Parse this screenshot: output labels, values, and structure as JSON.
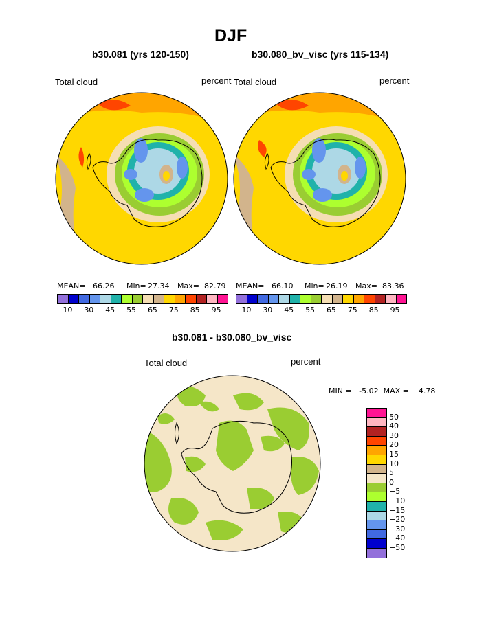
{
  "title": "DJF",
  "panels": [
    {
      "subtitle": "b30.081 (yrs 120-150)",
      "left_label": "Total cloud",
      "right_label": "percent",
      "stats": {
        "mean_label": "MEAN=",
        "mean": "66.26",
        "min_label": "Min=",
        "min": "27.34",
        "max_label": "Max=",
        "max": "82.79"
      }
    },
    {
      "subtitle": "b30.080_bv_visc (yrs 115-134)",
      "left_label": "Total cloud",
      "right_label": "percent",
      "stats": {
        "mean_label": "MEAN=",
        "mean": "66.10",
        "min_label": "Min=",
        "min": "26.19",
        "max_label": "Max=",
        "max": "83.36"
      }
    }
  ],
  "colorbar_top": {
    "colors": [
      "#9370DB",
      "#0000CD",
      "#4169E1",
      "#6495ED",
      "#ADD8E6",
      "#20B2AA",
      "#ADFF2F",
      "#9ACD32",
      "#F5DEB3",
      "#D2B48C",
      "#FFD700",
      "#FFA500",
      "#FF4500",
      "#B22222",
      "#FFB6C1",
      "#FF1493"
    ],
    "ticks": [
      "10",
      "30",
      "45",
      "55",
      "65",
      "75",
      "85",
      "95"
    ]
  },
  "diff_panel": {
    "subtitle": "b30.081 - b30.080_bv_visc",
    "left_label": "Total cloud",
    "right_label": "percent",
    "minmax_text": "MIN =   -5.02  MAX =    4.78",
    "colorbar": {
      "colors": [
        "#FF1493",
        "#FFB6C1",
        "#B22222",
        "#FF4500",
        "#FFA500",
        "#FFD700",
        "#D2B48C",
        "#F5E6C8",
        "#9ACD32",
        "#ADFF2F",
        "#20B2AA",
        "#ADD8E6",
        "#6495ED",
        "#4169E1",
        "#0000CD",
        "#9370DB"
      ],
      "ticks": [
        "50",
        "40",
        "30",
        "20",
        "15",
        "10",
        "5",
        "0",
        "−5",
        "−10",
        "−15",
        "−20",
        "−30",
        "−40",
        "−50"
      ]
    }
  }
}
